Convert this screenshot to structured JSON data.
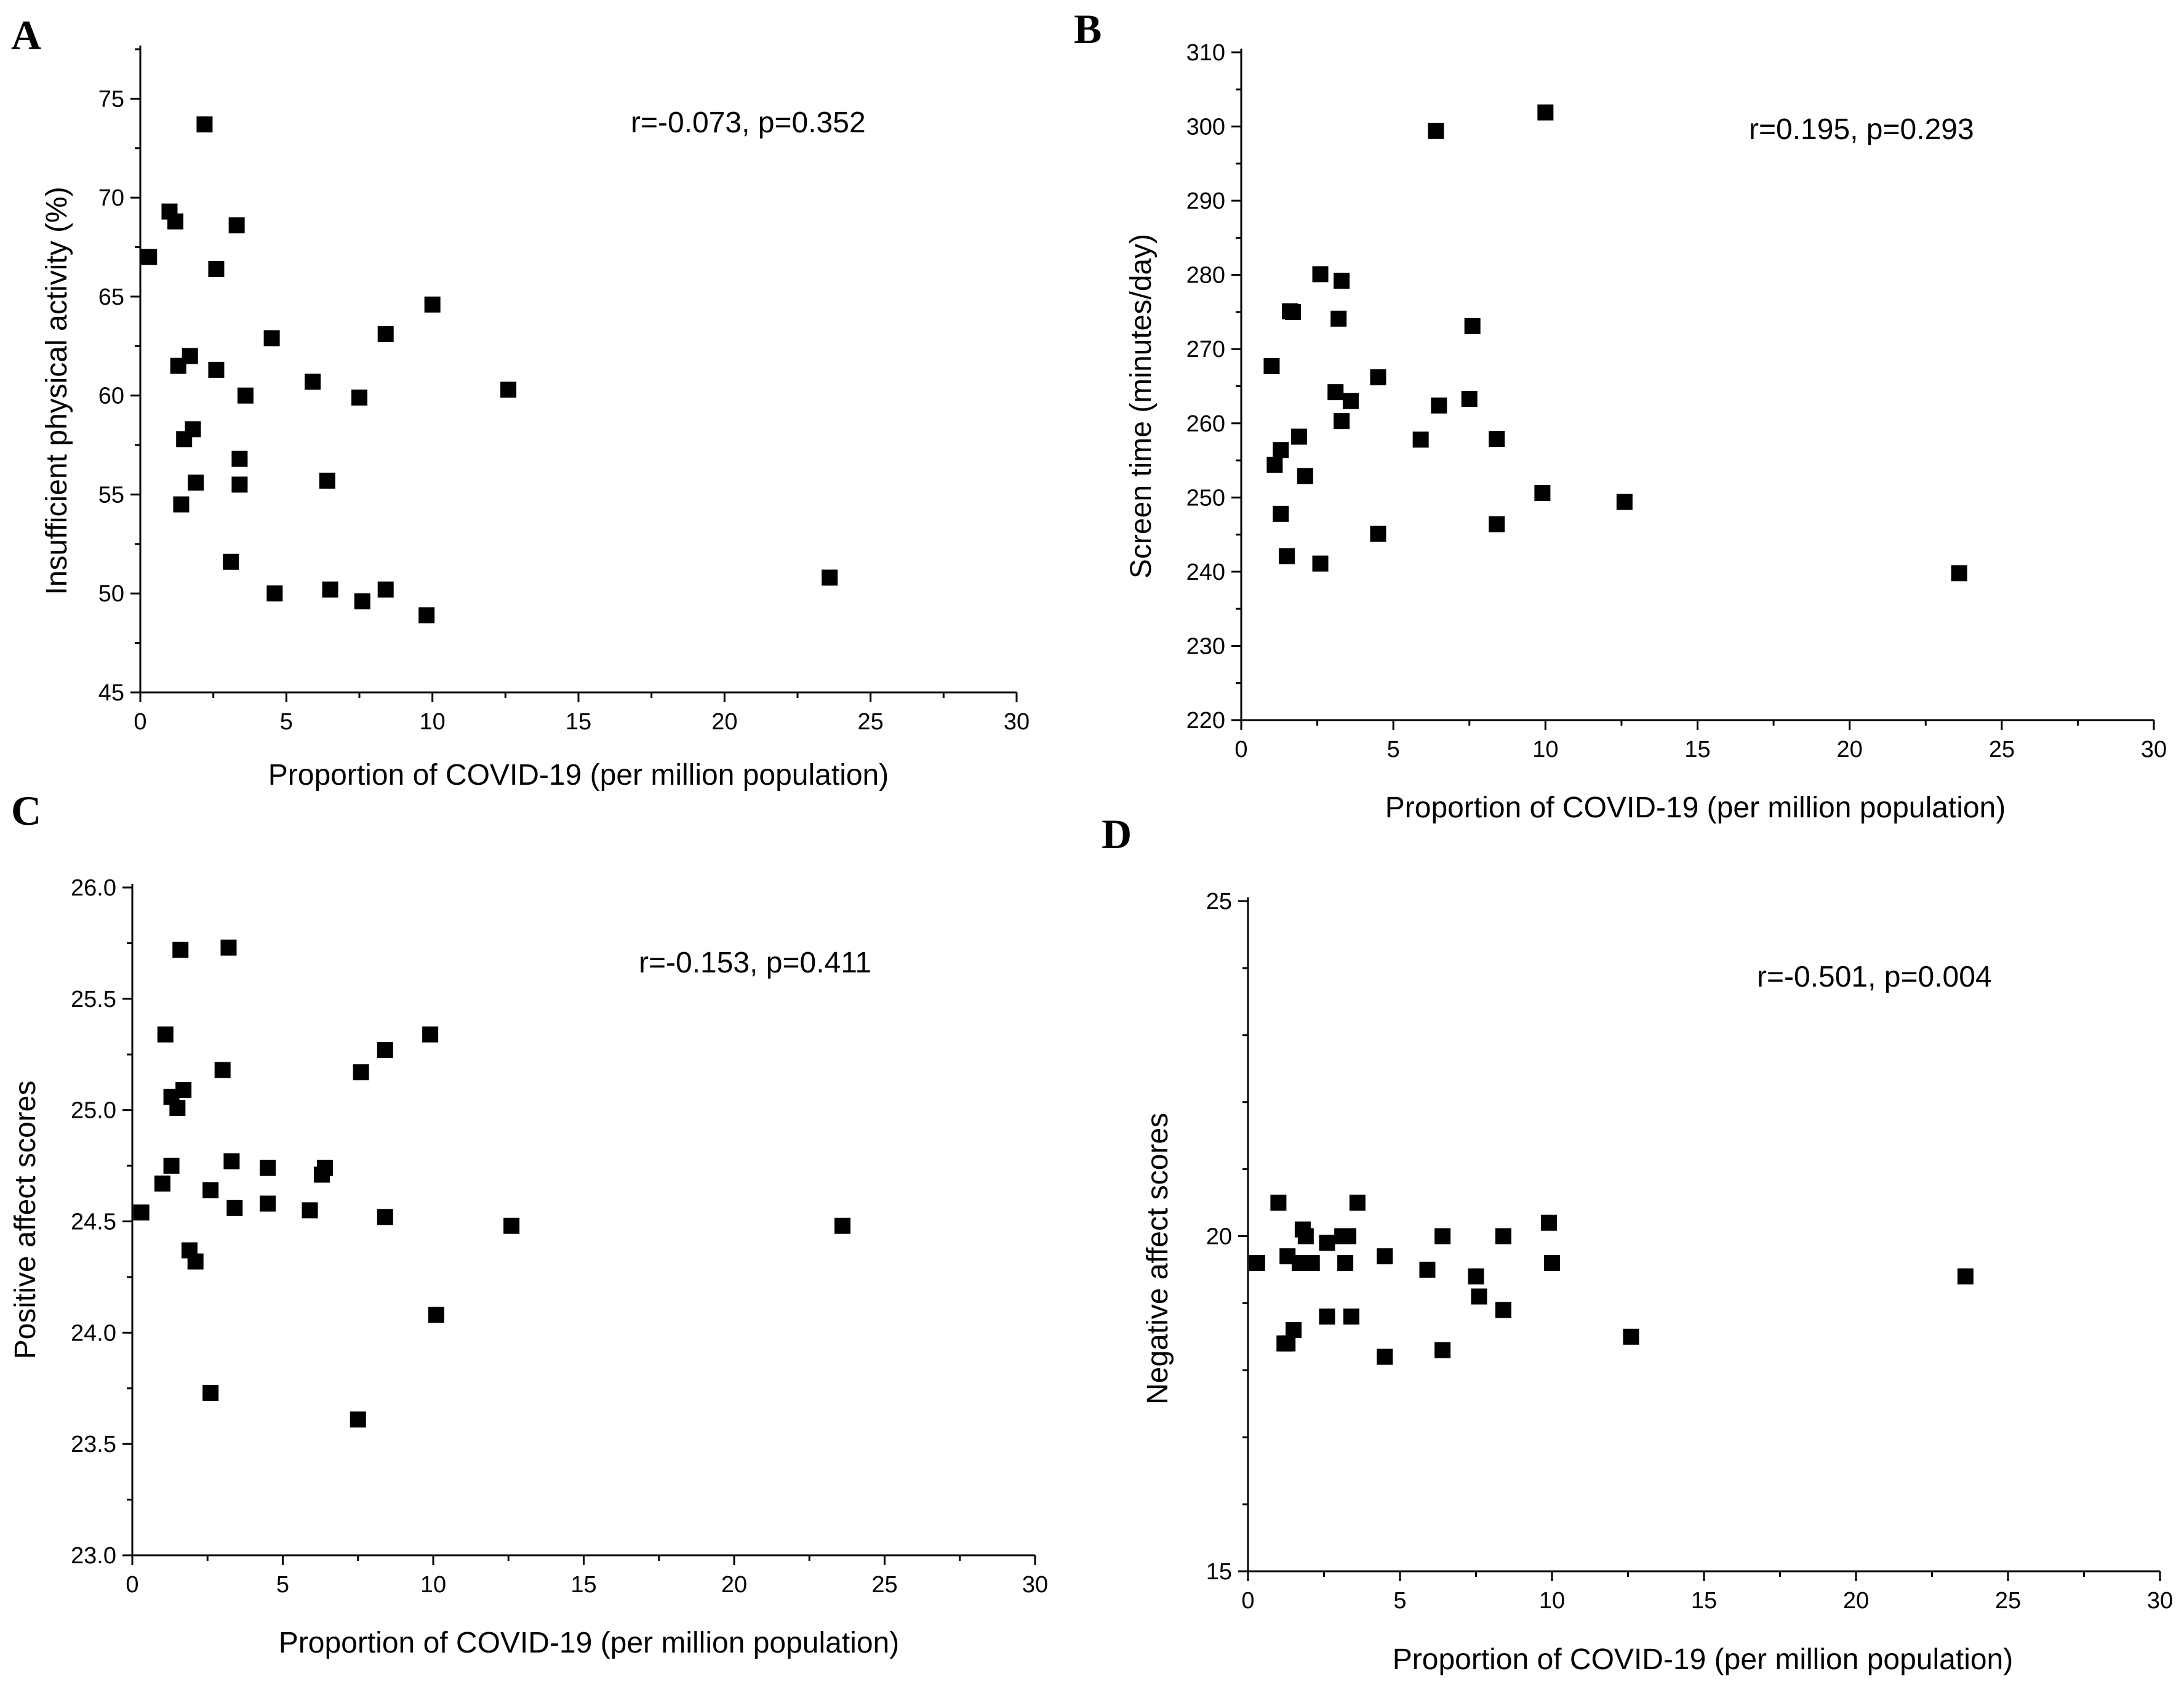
{
  "chart_data": [
    {
      "panel": "A",
      "type": "scatter",
      "annotation": "r=-0.073, p=0.352",
      "xlabel": "Proportion of COVID-19 (per million population)",
      "ylabel": "Insufficient physical activity (%)",
      "xlim": [
        0,
        30
      ],
      "ylim": [
        45,
        77.5
      ],
      "xticks": [
        "0",
        "5",
        "10",
        "15",
        "20",
        "25",
        "30"
      ],
      "yticks": [
        "45",
        "50",
        "55",
        "60",
        "65",
        "70",
        "75"
      ],
      "ytick_values": [
        45,
        50,
        55,
        60,
        65,
        70,
        75
      ],
      "x": [
        0.3,
        1.0,
        1.2,
        1.3,
        1.4,
        1.5,
        1.7,
        1.8,
        1.9,
        2.2,
        2.6,
        2.6,
        3.1,
        3.3,
        3.4,
        3.4,
        3.6,
        4.5,
        4.6,
        5.9,
        6.4,
        6.5,
        7.5,
        7.6,
        8.4,
        8.4,
        9.8,
        10.0,
        12.6,
        23.6
      ],
      "y": [
        67.0,
        69.3,
        68.8,
        61.5,
        54.5,
        57.8,
        62.0,
        58.3,
        55.6,
        73.7,
        66.4,
        61.3,
        51.6,
        68.6,
        56.8,
        55.5,
        60.0,
        62.9,
        50.0,
        60.7,
        55.7,
        50.2,
        59.9,
        49.6,
        63.1,
        50.2,
        48.9,
        64.6,
        60.3,
        50.8
      ]
    },
    {
      "panel": "B",
      "type": "scatter",
      "annotation": "r=0.195, p=0.293",
      "xlabel": "Proportion of COVID-19 (per million population)",
      "ylabel": "Screen time (minutes/day)",
      "xlim": [
        0,
        30
      ],
      "ylim": [
        220,
        310
      ],
      "xticks": [
        "0",
        "5",
        "10",
        "15",
        "20",
        "25",
        "30"
      ],
      "yticks": [
        "220",
        "230",
        "240",
        "250",
        "260",
        "270",
        "280",
        "290",
        "300",
        "310"
      ],
      "ytick_values": [
        220,
        230,
        240,
        250,
        260,
        270,
        280,
        290,
        300,
        310
      ],
      "x": [
        1.0,
        1.1,
        1.3,
        1.3,
        1.5,
        1.6,
        1.7,
        1.9,
        2.1,
        2.6,
        2.6,
        3.1,
        3.2,
        3.3,
        3.3,
        3.6,
        4.5,
        4.5,
        5.9,
        6.4,
        6.5,
        7.5,
        7.6,
        8.4,
        8.4,
        9.9,
        10.0,
        12.6,
        23.6
      ],
      "y": [
        267.7,
        254.4,
        256.4,
        247.8,
        242.1,
        275.1,
        275.0,
        258.2,
        252.9,
        280.1,
        241.1,
        264.2,
        274.1,
        279.2,
        260.3,
        263.0,
        266.2,
        245.1,
        257.8,
        299.4,
        262.4,
        263.3,
        273.1,
        246.4,
        257.9,
        250.6,
        301.9,
        249.4,
        239.8
      ]
    },
    {
      "panel": "C",
      "type": "scatter",
      "annotation": "r=-0.153, p=0.411",
      "xlabel": "Proportion of COVID-19 (per million population)",
      "ylabel": "Positive affect scores",
      "xlim": [
        0,
        30
      ],
      "ylim": [
        23.0,
        26.0
      ],
      "xticks": [
        "0",
        "5",
        "10",
        "15",
        "20",
        "25",
        "30"
      ],
      "yticks": [
        "23.0",
        "23.5",
        "24.0",
        "24.5",
        "25.0",
        "25.5",
        "26.0"
      ],
      "ytick_values": [
        23.0,
        23.5,
        24.0,
        24.5,
        25.0,
        25.5,
        26.0
      ],
      "x": [
        0.3,
        1.0,
        1.1,
        1.3,
        1.3,
        1.5,
        1.6,
        1.7,
        1.9,
        2.1,
        2.6,
        2.6,
        3.0,
        3.2,
        3.3,
        3.4,
        4.5,
        4.5,
        5.9,
        6.3,
        6.4,
        7.5,
        7.6,
        8.4,
        8.4,
        9.9,
        10.1,
        12.6,
        23.6
      ],
      "y": [
        24.54,
        24.67,
        25.34,
        25.06,
        24.75,
        25.01,
        25.72,
        25.09,
        24.37,
        24.32,
        24.64,
        23.73,
        25.18,
        25.73,
        24.77,
        24.56,
        24.74,
        24.58,
        24.55,
        24.71,
        24.74,
        23.61,
        25.17,
        25.27,
        24.52,
        25.34,
        24.08,
        24.48,
        24.48
      ]
    },
    {
      "panel": "D",
      "type": "scatter",
      "annotation": "r=-0.501, p=0.004",
      "xlabel": "Proportion of COVID-19 (per million population)",
      "ylabel": "Negative affect scores",
      "xlim": [
        0,
        30
      ],
      "ylim": [
        15,
        25
      ],
      "xticks": [
        "0",
        "5",
        "10",
        "15",
        "20",
        "25",
        "30"
      ],
      "yticks": [
        "15",
        "20",
        "25"
      ],
      "ytick_values": [
        15,
        20,
        25
      ],
      "x": [
        0.3,
        1.0,
        1.2,
        1.3,
        1.3,
        1.5,
        1.7,
        1.8,
        1.9,
        2.1,
        2.6,
        2.6,
        3.1,
        3.2,
        3.3,
        3.4,
        3.6,
        4.5,
        4.5,
        5.9,
        6.4,
        6.4,
        7.5,
        7.6,
        8.4,
        8.4,
        9.9,
        10.0,
        12.6,
        23.6
      ],
      "y": [
        19.6,
        20.5,
        18.4,
        19.7,
        18.4,
        18.6,
        19.6,
        20.1,
        20.0,
        19.6,
        19.9,
        18.8,
        20.0,
        19.6,
        20.0,
        18.8,
        20.5,
        19.7,
        18.2,
        19.5,
        20.0,
        18.3,
        19.4,
        19.1,
        20.0,
        18.9,
        20.2,
        19.6,
        18.5,
        19.4
      ]
    }
  ]
}
